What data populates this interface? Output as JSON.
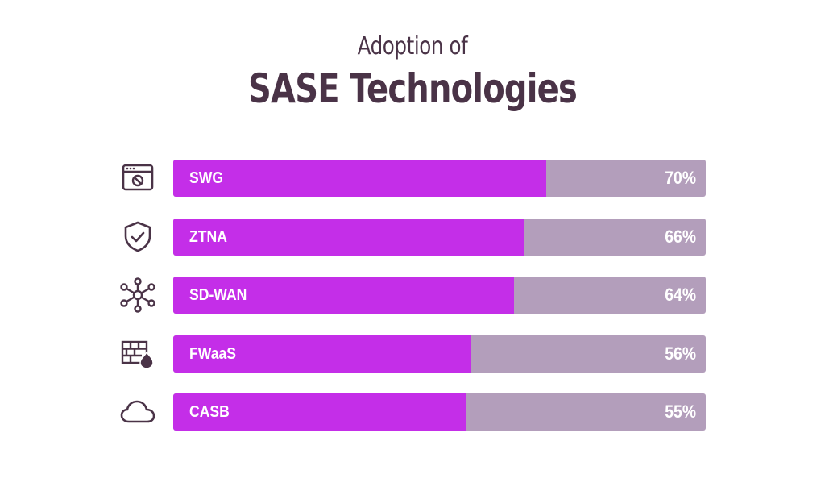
{
  "chart_data": {
    "type": "bar",
    "title": "SASE Technologies",
    "subtitle": "Adoption of",
    "categories": [
      "SWG",
      "ZTNA",
      "SD-WAN",
      "FWaaS",
      "CASB"
    ],
    "values": [
      70,
      66,
      64,
      56,
      55
    ],
    "value_labels": [
      "70%",
      "66%",
      "64%",
      "56%",
      "55%"
    ],
    "icons": [
      "browser-blocked-icon",
      "shield-check-icon",
      "network-hub-icon",
      "firewall-icon",
      "cloud-icon"
    ],
    "xlim": [
      0,
      100
    ],
    "grid": false,
    "orientation": "horizontal"
  },
  "colors": {
    "fill": "#c42ee8",
    "track": "#b39ebb",
    "text": "#4a3347"
  }
}
